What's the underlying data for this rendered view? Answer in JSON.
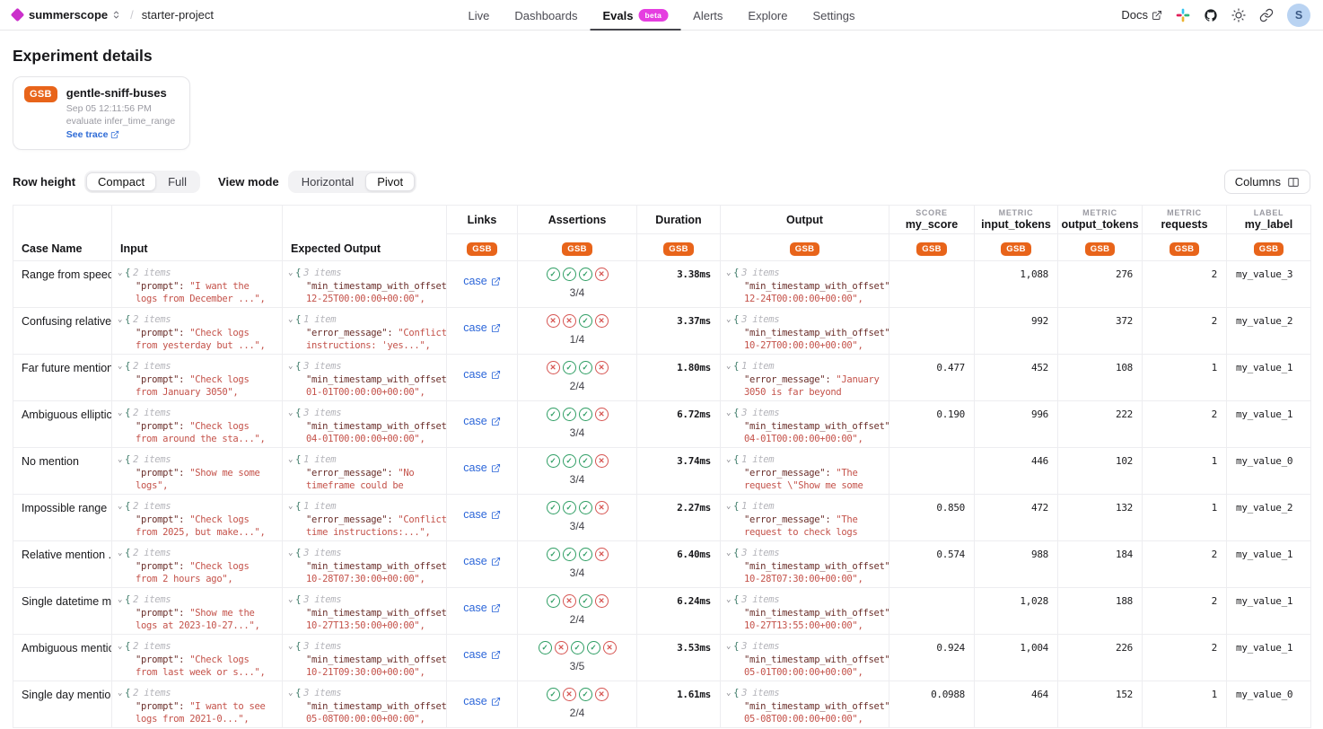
{
  "topbar": {
    "org": "summerscope",
    "project": "starter-project",
    "nav": [
      {
        "label": "Live"
      },
      {
        "label": "Dashboards"
      },
      {
        "label": "Evals",
        "badge": "beta",
        "active": true
      },
      {
        "label": "Alerts"
      },
      {
        "label": "Explore"
      },
      {
        "label": "Settings"
      }
    ],
    "docs_label": "Docs",
    "avatar_initial": "S"
  },
  "page": {
    "title": "Experiment details"
  },
  "experiment_card": {
    "badge": "GSB",
    "name": "gentle-sniff-buses",
    "timestamp": "Sep 05 12:11:56 PM",
    "description": "evaluate infer_time_range",
    "trace_link": "See trace"
  },
  "controls": {
    "row_height_label": "Row height",
    "row_height_options": [
      "Compact",
      "Full"
    ],
    "row_height_selected": "Compact",
    "view_mode_label": "View mode",
    "view_mode_options": [
      "Horizontal",
      "Pivot"
    ],
    "view_mode_selected": "Pivot",
    "columns_button": "Columns"
  },
  "colors": {
    "accent_orange": "#E8641A",
    "beta_magenta": "#E53EE0",
    "logo_magenta": "#CB30CB",
    "link_blue": "#2C66D9",
    "pass_green": "#2F9E64",
    "fail_red": "#D65451",
    "json_key": "#6B2F2B",
    "json_value": "#C4524A"
  },
  "table": {
    "badge": "GSB",
    "columns": {
      "case_name": "Case Name",
      "input": "Input",
      "expected_output": "Expected Output",
      "links": "Links",
      "assertions": "Assertions",
      "duration": "Duration",
      "output": "Output",
      "typed": [
        {
          "type": "SCORE",
          "name": "my_score"
        },
        {
          "type": "METRIC",
          "name": "input_tokens"
        },
        {
          "type": "METRIC",
          "name": "output_tokens"
        },
        {
          "type": "METRIC",
          "name": "requests"
        },
        {
          "type": "LABEL",
          "name": "my_label"
        }
      ]
    },
    "rows": [
      {
        "case_name": "Range from speech",
        "input": {
          "count": "2 items",
          "key": "\"prompt\":",
          "val1": "\"I want the",
          "val2": "logs from December ...\","
        },
        "expected": {
          "count": "3 items",
          "key": "\"min_timestamp_with_offset\"",
          "val1": "",
          "val2": "12-25T00:00:00+00:00\","
        },
        "link": "case",
        "assertions": [
          "pass",
          "pass",
          "pass",
          "fail"
        ],
        "ratio": "3/4",
        "duration": "3.38ms",
        "output": {
          "count": "3 items",
          "key": "\"min_timestamp_with_offset\"",
          "val1": "",
          "val2": "12-24T00:00:00+00:00\","
        },
        "score": "",
        "input_tokens": "1,088",
        "output_tokens": "276",
        "requests": "2",
        "label": "my_value_3"
      },
      {
        "case_name": "Confusing relative...",
        "input": {
          "count": "2 items",
          "key": "\"prompt\":",
          "val1": "\"Check logs",
          "val2": "from yesterday but ...\","
        },
        "expected": {
          "count": "1 item",
          "key": "\"error_message\":",
          "val1": "\"Conflicti",
          "val2": "instructions: 'yes...\","
        },
        "link": "case",
        "assertions": [
          "fail",
          "fail",
          "pass",
          "fail"
        ],
        "ratio": "1/4",
        "duration": "3.37ms",
        "output": {
          "count": "3 items",
          "key": "\"min_timestamp_with_offset\"",
          "val1": "",
          "val2": "10-27T00:00:00+00:00\","
        },
        "score": "",
        "input_tokens": "992",
        "output_tokens": "372",
        "requests": "2",
        "label": "my_value_2"
      },
      {
        "case_name": "Far future mention",
        "input": {
          "count": "2 items",
          "key": "\"prompt\":",
          "val1": "\"Check logs",
          "val2": "from January 3050\","
        },
        "expected": {
          "count": "3 items",
          "key": "\"min_timestamp_with_offset\"",
          "val1": "",
          "val2": "01-01T00:00:00+00:00\","
        },
        "link": "case",
        "assertions": [
          "fail",
          "pass",
          "pass",
          "fail"
        ],
        "ratio": "2/4",
        "duration": "1.80ms",
        "output": {
          "count": "1 item",
          "key": "\"error_message\":",
          "val1": "\"January",
          "val2": "3050 is far beyond"
        },
        "score": "0.477",
        "input_tokens": "452",
        "output_tokens": "108",
        "requests": "1",
        "label": "my_value_1"
      },
      {
        "case_name": "Ambiguous elliptic...",
        "input": {
          "count": "2 items",
          "key": "\"prompt\":",
          "val1": "\"Check logs",
          "val2": "from around the sta...\","
        },
        "expected": {
          "count": "3 items",
          "key": "\"min_timestamp_with_offset\"",
          "val1": "",
          "val2": "04-01T00:00:00+00:00\","
        },
        "link": "case",
        "assertions": [
          "pass",
          "pass",
          "pass",
          "fail"
        ],
        "ratio": "3/4",
        "duration": "6.72ms",
        "output": {
          "count": "3 items",
          "key": "\"min_timestamp_with_offset\"",
          "val1": "",
          "val2": "04-01T00:00:00+00:00\","
        },
        "score": "0.190",
        "input_tokens": "996",
        "output_tokens": "222",
        "requests": "2",
        "label": "my_value_1"
      },
      {
        "case_name": "No mention",
        "input": {
          "count": "2 items",
          "key": "\"prompt\":",
          "val1": "\"Show me some",
          "val2": "logs\","
        },
        "expected": {
          "count": "1 item",
          "key": "\"error_message\":",
          "val1": "\"No",
          "val2": "timeframe could be"
        },
        "link": "case",
        "assertions": [
          "pass",
          "pass",
          "pass",
          "fail"
        ],
        "ratio": "3/4",
        "duration": "3.74ms",
        "output": {
          "count": "1 item",
          "key": "\"error_message\":",
          "val1": "\"The",
          "val2": "request \\\"Show me some"
        },
        "score": "",
        "input_tokens": "446",
        "output_tokens": "102",
        "requests": "1",
        "label": "my_value_0"
      },
      {
        "case_name": "Impossible range",
        "input": {
          "count": "2 items",
          "key": "\"prompt\":",
          "val1": "\"Check logs",
          "val2": "from 2025, but make...\","
        },
        "expected": {
          "count": "1 item",
          "key": "\"error_message\":",
          "val1": "\"Conflict:",
          "val2": "time instructions:...\","
        },
        "link": "case",
        "assertions": [
          "pass",
          "pass",
          "pass",
          "fail"
        ],
        "ratio": "3/4",
        "duration": "2.27ms",
        "output": {
          "count": "1 item",
          "key": "\"error_message\":",
          "val1": "\"The",
          "val2": "request to check logs"
        },
        "score": "0.850",
        "input_tokens": "472",
        "output_tokens": "132",
        "requests": "1",
        "label": "my_value_2"
      },
      {
        "case_name": "Relative mention ...",
        "input": {
          "count": "2 items",
          "key": "\"prompt\":",
          "val1": "\"Check logs",
          "val2": "from 2 hours ago\","
        },
        "expected": {
          "count": "3 items",
          "key": "\"min_timestamp_with_offset\"",
          "val1": "",
          "val2": "10-28T07:30:00+00:00\","
        },
        "link": "case",
        "assertions": [
          "pass",
          "pass",
          "pass",
          "fail"
        ],
        "ratio": "3/4",
        "duration": "6.40ms",
        "output": {
          "count": "3 items",
          "key": "\"min_timestamp_with_offset\"",
          "val1": "",
          "val2": "10-28T07:30:00+00:00\","
        },
        "score": "0.574",
        "input_tokens": "988",
        "output_tokens": "184",
        "requests": "2",
        "label": "my_value_1"
      },
      {
        "case_name": "Single datetime m...",
        "input": {
          "count": "2 items",
          "key": "\"prompt\":",
          "val1": "\"Show me the",
          "val2": "logs at 2023-10-27...\","
        },
        "expected": {
          "count": "3 items",
          "key": "\"min_timestamp_with_offset\"",
          "val1": "",
          "val2": "10-27T13:50:00+00:00\","
        },
        "link": "case",
        "assertions": [
          "pass",
          "fail",
          "pass",
          "fail"
        ],
        "ratio": "2/4",
        "duration": "6.24ms",
        "output": {
          "count": "3 items",
          "key": "\"min_timestamp_with_offset\"",
          "val1": "",
          "val2": "10-27T13:55:00+00:00\","
        },
        "score": "",
        "input_tokens": "1,028",
        "output_tokens": "188",
        "requests": "2",
        "label": "my_value_1"
      },
      {
        "case_name": "Ambiguous mention",
        "input": {
          "count": "2 items",
          "key": "\"prompt\":",
          "val1": "\"Check logs",
          "val2": "from last week or s...\","
        },
        "expected": {
          "count": "3 items",
          "key": "\"min_timestamp_with_offset\"",
          "val1": "",
          "val2": "10-21T09:30:00+00:00\","
        },
        "link": "case",
        "assertions": [
          "pass",
          "fail",
          "pass",
          "pass",
          "fail"
        ],
        "ratio": "3/5",
        "duration": "3.53ms",
        "output": {
          "count": "3 items",
          "key": "\"min_timestamp_with_offset\"",
          "val1": "",
          "val2": "05-01T00:00:00+00:00\","
        },
        "score": "0.924",
        "input_tokens": "1,004",
        "output_tokens": "226",
        "requests": "2",
        "label": "my_value_1"
      },
      {
        "case_name": "Single day mention",
        "input": {
          "count": "2 items",
          "key": "\"prompt\":",
          "val1": "\"I want to see",
          "val2": "logs from 2021-0...\","
        },
        "expected": {
          "count": "3 items",
          "key": "\"min_timestamp_with_offset\"",
          "val1": "",
          "val2": "05-08T00:00:00+00:00\","
        },
        "link": "case",
        "assertions": [
          "pass",
          "fail",
          "pass",
          "fail"
        ],
        "ratio": "2/4",
        "duration": "1.61ms",
        "output": {
          "count": "3 items",
          "key": "\"min_timestamp_with_offset\"",
          "val1": "",
          "val2": "05-08T00:00:00+00:00\","
        },
        "score": "0.0988",
        "input_tokens": "464",
        "output_tokens": "152",
        "requests": "1",
        "label": "my_value_0"
      }
    ]
  }
}
